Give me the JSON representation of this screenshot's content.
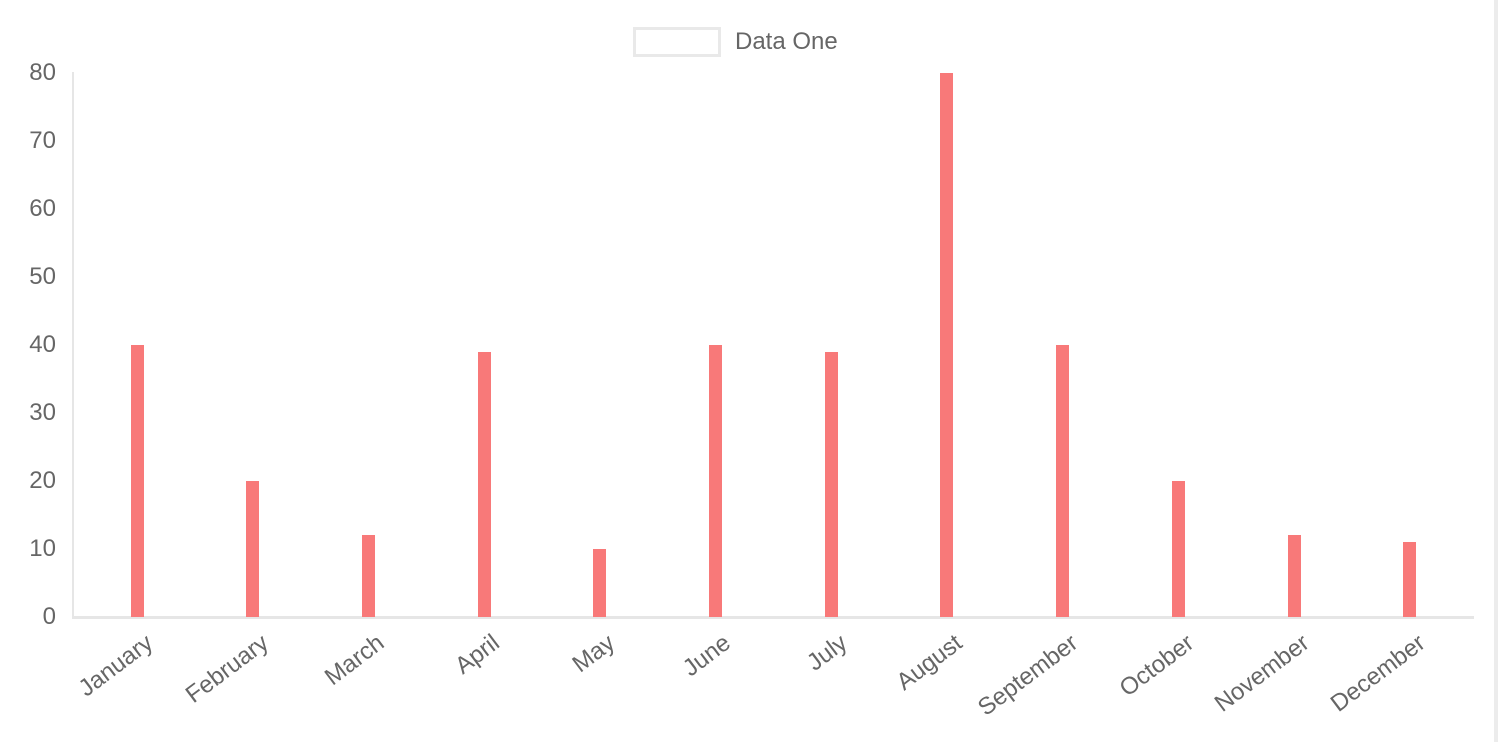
{
  "chart_data": {
    "type": "bar",
    "categories": [
      "January",
      "February",
      "March",
      "April",
      "May",
      "June",
      "July",
      "August",
      "September",
      "October",
      "November",
      "December"
    ],
    "series": [
      {
        "name": "Data One",
        "color": "#f87979",
        "values": [
          40,
          20,
          12,
          39,
          10,
          40,
          39,
          80,
          40,
          20,
          12,
          11
        ]
      }
    ],
    "title": "",
    "xlabel": "",
    "ylabel": "",
    "ylim": [
      0,
      80
    ],
    "y_ticks": [
      0,
      10,
      20,
      30,
      40,
      50,
      60,
      70,
      80
    ],
    "grid": false,
    "legend_position": "top",
    "x_label_rotation_deg": -37
  },
  "colors": {
    "bar": "#f87979",
    "axis_line": "#e6e6e6",
    "tick_text": "#666666",
    "legend_swatch_border": "#e9e9e9",
    "edge_strip": "#ececec"
  }
}
